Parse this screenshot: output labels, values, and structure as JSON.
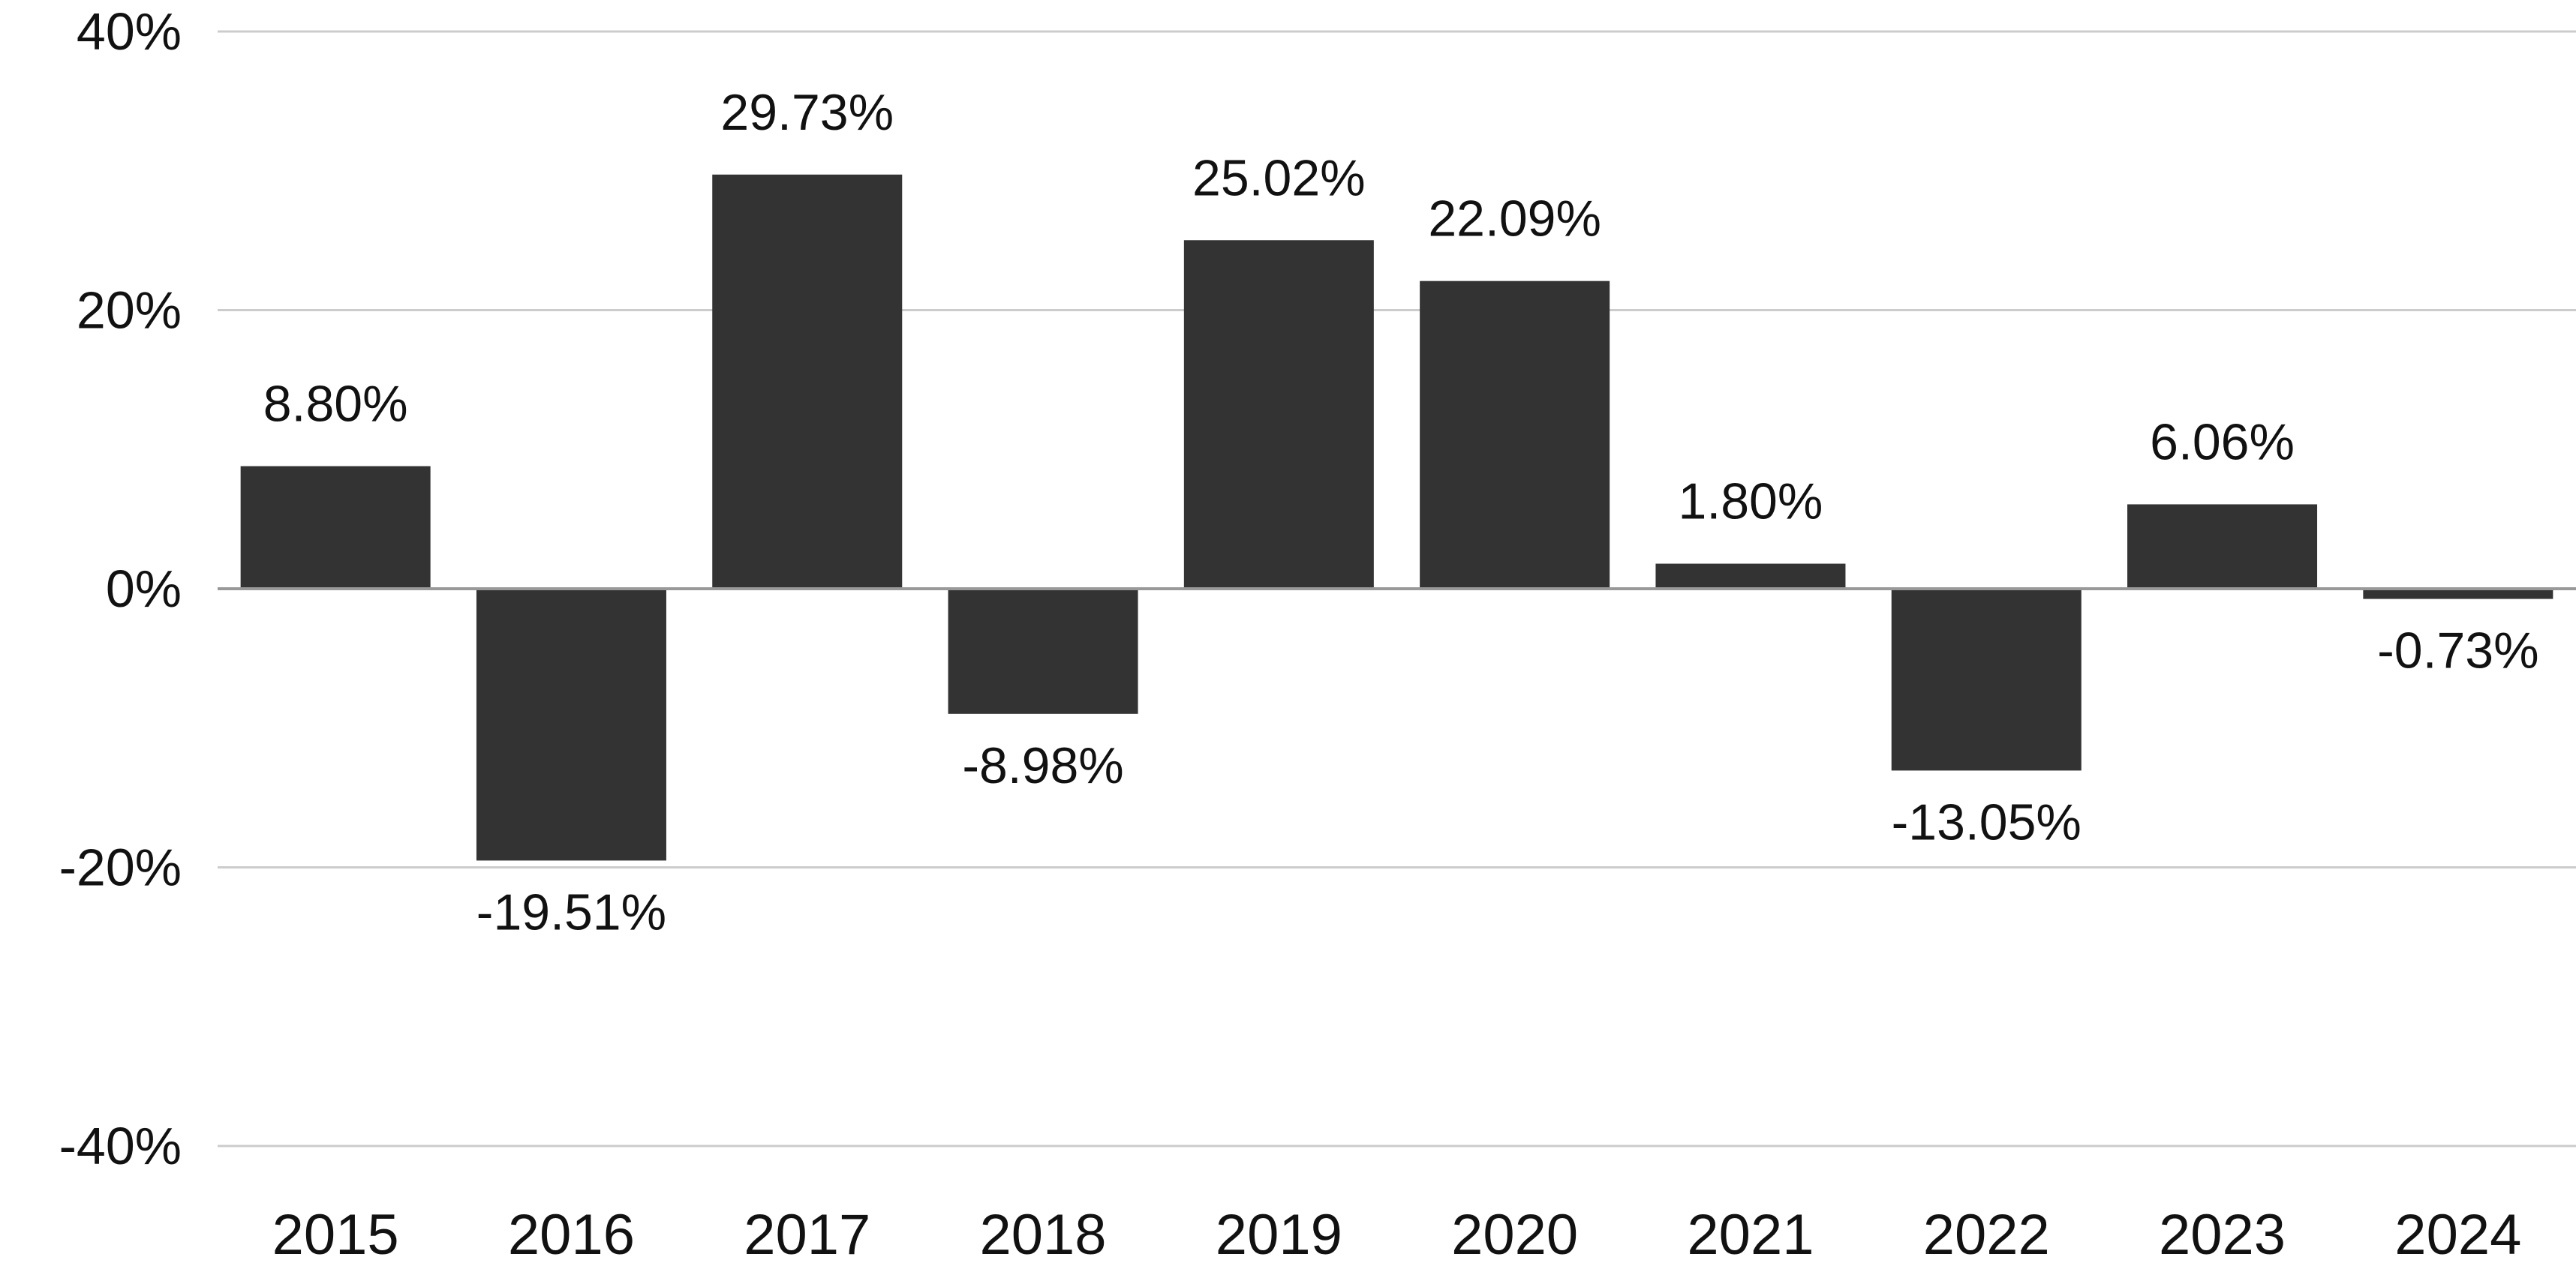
{
  "chart_data": {
    "type": "bar",
    "title": "",
    "xlabel": "",
    "ylabel": "",
    "categories": [
      "2015",
      "2016",
      "2017",
      "2018",
      "2019",
      "2020",
      "2021",
      "2022",
      "2023",
      "2024"
    ],
    "values": [
      8.8,
      -19.51,
      29.73,
      -8.98,
      25.02,
      22.09,
      1.8,
      -13.05,
      6.06,
      -0.73
    ],
    "data_labels": [
      "8.80%",
      "-19.51%",
      "29.73%",
      "-8.98%",
      "25.02%",
      "22.09%",
      "1.80%",
      "-13.05%",
      "6.06%",
      "-0.73%"
    ],
    "ylim": [
      -40,
      40
    ],
    "yticks": [
      40,
      20,
      0,
      -20,
      -40
    ],
    "ytick_labels": [
      "40%",
      "20%",
      "0%",
      "-20%",
      "-40%"
    ],
    "grid": true,
    "legend": "none",
    "colors": {
      "bar": "#333333",
      "grid": "#cccccc",
      "zero_line": "#999999",
      "text": "#111111"
    }
  }
}
